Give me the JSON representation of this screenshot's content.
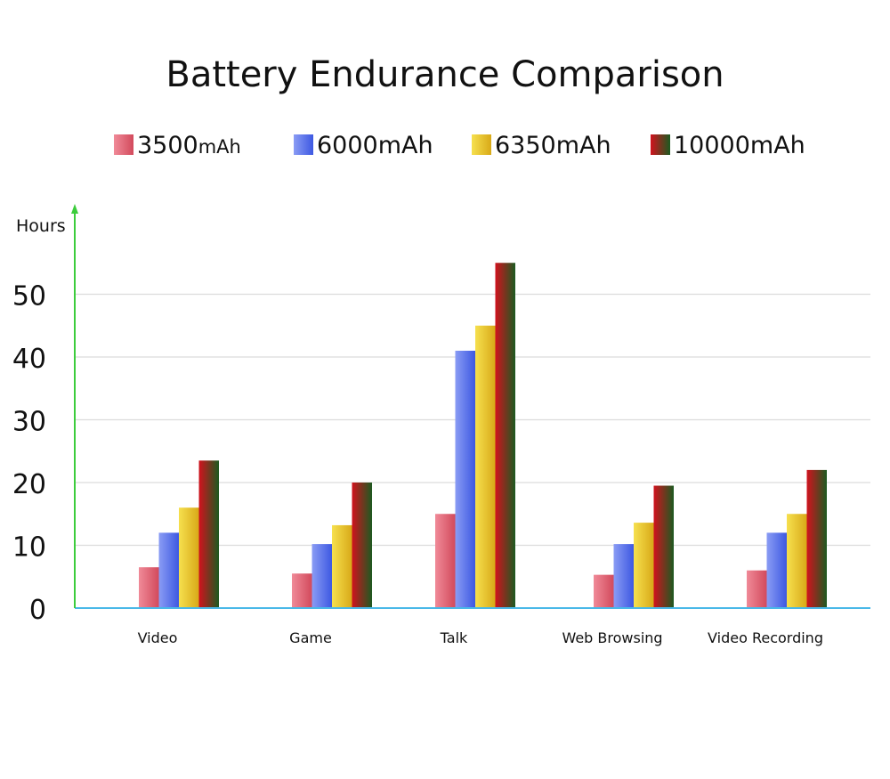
{
  "chart_data": {
    "type": "bar",
    "title": "Battery Endurance Comparison",
    "ylabel": "Hours",
    "xlabel": "",
    "categories": [
      "Video",
      "Game",
      "Talk",
      "Web Browsing",
      "Video Recording"
    ],
    "series": [
      {
        "name": "3500mAh",
        "name_main": "3500",
        "name_unit": "mAh",
        "values": [
          6.5,
          5.5,
          15,
          5.3,
          6
        ],
        "colors": [
          "#f08a98",
          "#d24a5c"
        ]
      },
      {
        "name": "6000mAh",
        "name_main": "6000mAh",
        "name_unit": "",
        "values": [
          12,
          10.2,
          41,
          10.2,
          12
        ],
        "colors": [
          "#8a9cf4",
          "#3d58e2"
        ]
      },
      {
        "name": "6350mAh",
        "name_main": "6350mAh",
        "name_unit": "",
        "values": [
          16,
          13.2,
          45,
          13.6,
          15
        ],
        "colors": [
          "#f6e04e",
          "#d8a918"
        ]
      },
      {
        "name": "10000mAh",
        "name_main": "10000mAh",
        "name_unit": "",
        "values": [
          23.5,
          20,
          55,
          19.5,
          22
        ],
        "colors": [
          "#d1121e",
          "#1c5a20"
        ]
      }
    ],
    "yticks": [
      0,
      10,
      20,
      30,
      40,
      50
    ],
    "ylim": [
      0,
      55
    ],
    "grid": true,
    "legend": "top",
    "axis_color": "#49b8e8",
    "yaxis_color": "#3ccc3c",
    "grid_color": "#dcdcdc"
  }
}
